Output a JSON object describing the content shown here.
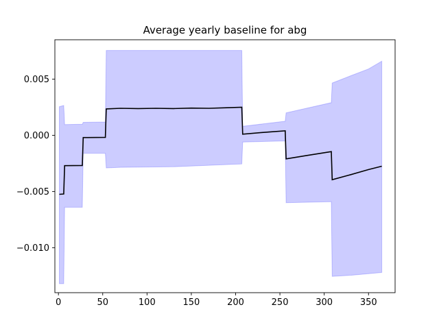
{
  "chart_data": {
    "type": "line",
    "title": "Average yearly baseline for abg",
    "xlabel": "",
    "ylabel": "",
    "xlim": [
      -4,
      380
    ],
    "ylim": [
      -0.014,
      0.0085
    ],
    "xticks": [
      0,
      50,
      100,
      150,
      200,
      250,
      300,
      350
    ],
    "xtick_labels": [
      "0",
      "50",
      "100",
      "150",
      "200",
      "250",
      "300",
      "350"
    ],
    "yticks": [
      -0.01,
      -0.005,
      0.0,
      0.005
    ],
    "ytick_labels": [
      "−0.010",
      "−0.005",
      "0.000",
      "0.005"
    ],
    "grid": false,
    "colors": {
      "band": "#0000ff",
      "line": "#000000"
    },
    "series": [
      {
        "role": "mean",
        "points": [
          [
            1,
            -0.00525
          ],
          [
            6,
            -0.00522
          ],
          [
            7,
            -0.0027
          ],
          [
            27,
            -0.00268
          ],
          [
            28,
            -0.0002
          ],
          [
            53,
            -0.00018
          ],
          [
            54,
            0.00235
          ],
          [
            70,
            0.0024
          ],
          [
            90,
            0.00238
          ],
          [
            110,
            0.0024
          ],
          [
            130,
            0.00238
          ],
          [
            150,
            0.00242
          ],
          [
            170,
            0.0024
          ],
          [
            190,
            0.00245
          ],
          [
            207,
            0.0025
          ],
          [
            208,
            0.0001
          ],
          [
            230,
            0.00025
          ],
          [
            256,
            0.0004
          ],
          [
            257,
            -0.0021
          ],
          [
            280,
            -0.0018
          ],
          [
            308,
            -0.00145
          ],
          [
            309,
            -0.00395
          ],
          [
            330,
            -0.0035
          ],
          [
            350,
            -0.00305
          ],
          [
            365,
            -0.00275
          ]
        ]
      },
      {
        "role": "band",
        "upper": [
          [
            1,
            0.00255
          ],
          [
            6,
            0.00265
          ],
          [
            7,
            0.00095
          ],
          [
            27,
            0.00098
          ],
          [
            28,
            0.00115
          ],
          [
            53,
            0.00118
          ],
          [
            54,
            0.00755
          ],
          [
            207,
            0.00755
          ],
          [
            208,
            0.0008
          ],
          [
            256,
            0.00125
          ],
          [
            257,
            0.002
          ],
          [
            308,
            0.0029
          ],
          [
            309,
            0.00465
          ],
          [
            330,
            0.0053
          ],
          [
            350,
            0.0059
          ],
          [
            365,
            0.0066
          ]
        ],
        "lower": [
          [
            1,
            -0.0132
          ],
          [
            6,
            -0.0132
          ],
          [
            7,
            -0.0064
          ],
          [
            27,
            -0.0064
          ],
          [
            28,
            -0.0016
          ],
          [
            53,
            -0.0016
          ],
          [
            54,
            -0.0029
          ],
          [
            70,
            -0.00285
          ],
          [
            130,
            -0.0028
          ],
          [
            207,
            -0.00255
          ],
          [
            208,
            -0.0006
          ],
          [
            256,
            -0.0005
          ],
          [
            257,
            -0.006
          ],
          [
            308,
            -0.0059
          ],
          [
            309,
            -0.01255
          ],
          [
            330,
            -0.01245
          ],
          [
            365,
            -0.0122
          ]
        ]
      }
    ]
  }
}
